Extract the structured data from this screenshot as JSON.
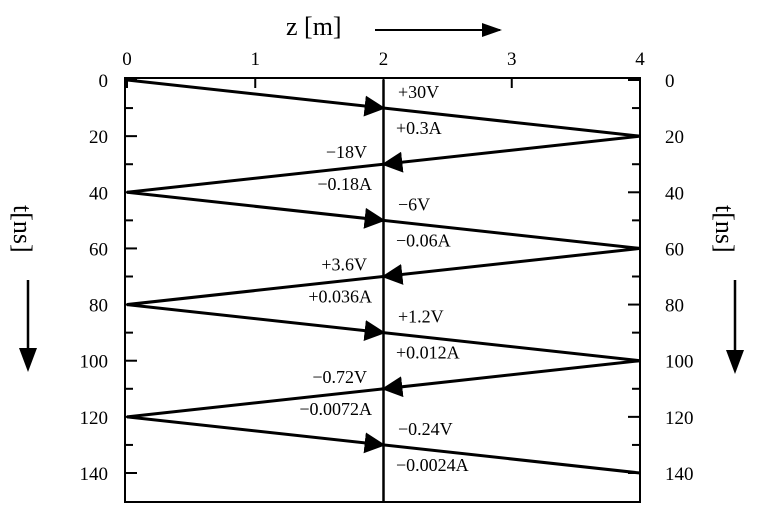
{
  "z_axis": {
    "title": "z [m]",
    "ticks": [
      "0",
      "1",
      "2",
      "3",
      "4"
    ]
  },
  "t_axis_left": {
    "title": "t[ns]",
    "ticks": [
      "0",
      "20",
      "40",
      "60",
      "80",
      "100",
      "120",
      "140"
    ]
  },
  "t_axis_right": {
    "title": "t[ns]",
    "ticks": [
      "0",
      "20",
      "40",
      "60",
      "80",
      "100",
      "120",
      "140"
    ]
  },
  "observation_point": {
    "z_m": 2
  },
  "bounce_path": [
    {
      "z": 0,
      "t": 0
    },
    {
      "z": 4,
      "t": 20
    },
    {
      "z": 0,
      "t": 40
    },
    {
      "z": 4,
      "t": 60
    },
    {
      "z": 0,
      "t": 80
    },
    {
      "z": 4,
      "t": 100
    },
    {
      "z": 0,
      "t": 120
    },
    {
      "z": 4,
      "t": 140
    }
  ],
  "waves": [
    {
      "voltage": "+30V",
      "current": "+0.3A"
    },
    {
      "voltage": "−18V",
      "current": "−0.18A"
    },
    {
      "voltage": "−6V",
      "current": "−0.06A"
    },
    {
      "voltage": "+3.6V",
      "current": "+0.036A"
    },
    {
      "voltage": "+1.2V",
      "current": "+0.012A"
    },
    {
      "voltage": "−0.72V",
      "current": "−0.0072A"
    },
    {
      "voltage": "−0.24V",
      "current": "−0.0024A"
    }
  ]
}
